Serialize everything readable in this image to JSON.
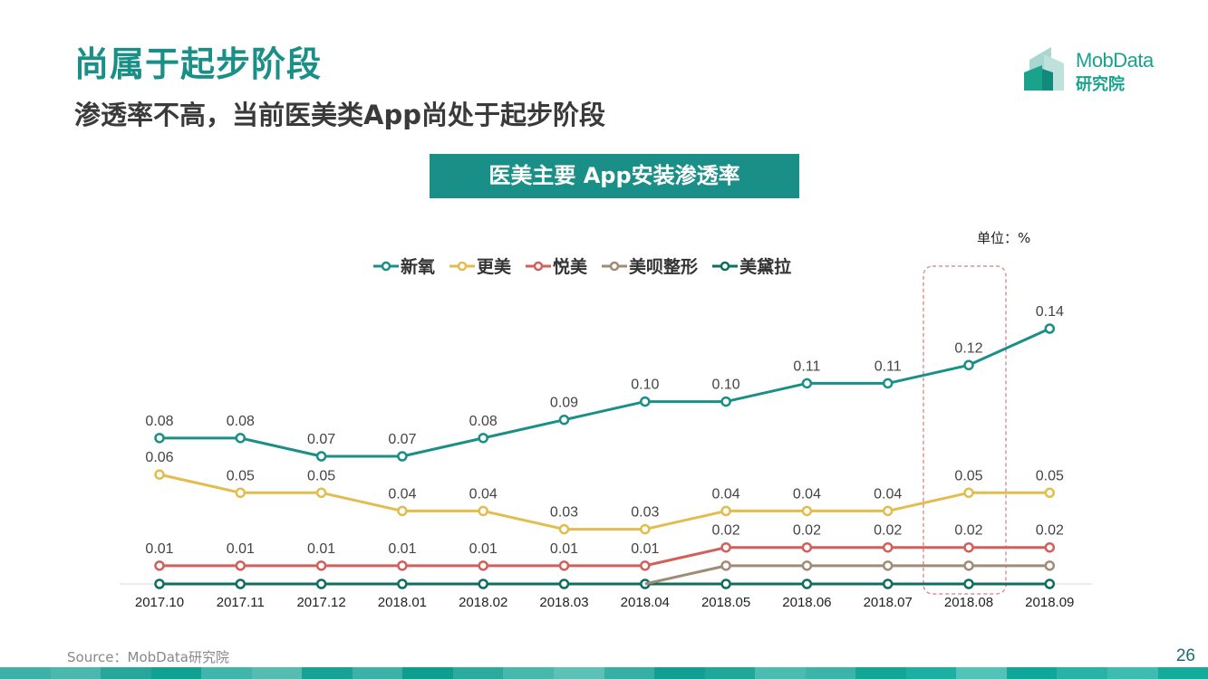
{
  "header": {
    "title": "尚属于起步阶段",
    "subtitle": "渗透率不高，当前医美类App尚处于起步阶段"
  },
  "logo": {
    "name_en": "MobData",
    "name_cn": "研究院"
  },
  "chart_banner": "医美主要 App安装渗透率",
  "unit_label": "单位：%",
  "footer": {
    "source": "Source：MobData研究院",
    "page_number": "26"
  },
  "colors": {
    "brand": "#1a8f87",
    "highlight_box": "#d9797f",
    "footer_bar": [
      "#3db1a5",
      "#4ab8ac",
      "#27a79b",
      "#0fa191",
      "#40b5a9",
      "#55bcb0",
      "#16a294",
      "#3cb2a7",
      "#0d9e8f",
      "#2aab9d",
      "#46b9ac",
      "#5dc2b6",
      "#36b0a3",
      "#109f92",
      "#1fa899",
      "#4bbcb0",
      "#3ab5a8",
      "#12a696",
      "#1cb0a2",
      "#52c3b7",
      "#0fa799",
      "#28b3a6",
      "#3dbdb1",
      "#14aa9c"
    ]
  },
  "chart_data": {
    "type": "line",
    "title": "医美主要 App安装渗透率",
    "unit": "%",
    "xlabel": "",
    "ylabel": "",
    "ylim": [
      0,
      0.14
    ],
    "grid": false,
    "legend_position": "top",
    "categories": [
      "2017.10",
      "2017.11",
      "2017.12",
      "2018.01",
      "2018.02",
      "2018.03",
      "2018.04",
      "2018.05",
      "2018.06",
      "2018.07",
      "2018.08",
      "2018.09"
    ],
    "highlight_category": "2018.08",
    "series": [
      {
        "name": "新氧",
        "color": "#1a8f87",
        "show_labels": true,
        "values": [
          0.08,
          0.08,
          0.07,
          0.07,
          0.08,
          0.09,
          0.1,
          0.1,
          0.11,
          0.11,
          0.12,
          0.14
        ]
      },
      {
        "name": "更美",
        "color": "#e2bd4e",
        "show_labels": true,
        "values": [
          0.06,
          0.05,
          0.05,
          0.04,
          0.04,
          0.03,
          0.03,
          0.04,
          0.04,
          0.04,
          0.05,
          0.05
        ]
      },
      {
        "name": "悦美",
        "color": "#d35f5b",
        "show_labels": true,
        "values": [
          0.01,
          0.01,
          0.01,
          0.01,
          0.01,
          0.01,
          0.01,
          0.02,
          0.02,
          0.02,
          0.02,
          0.02
        ]
      },
      {
        "name": "美呗整形",
        "color": "#a08b76",
        "show_labels": false,
        "start_index": 6,
        "values": [
          0.0,
          0.0,
          0.0,
          0.0,
          0.0,
          0.0,
          0.0,
          0.01,
          0.01,
          0.01,
          0.01,
          0.01
        ]
      },
      {
        "name": "美黛拉",
        "color": "#0f6e60",
        "show_labels": false,
        "values": [
          0.0,
          0.0,
          0.0,
          0.0,
          0.0,
          0.0,
          0.0,
          0.0,
          0.0,
          0.0,
          0.0,
          0.0
        ]
      }
    ]
  }
}
